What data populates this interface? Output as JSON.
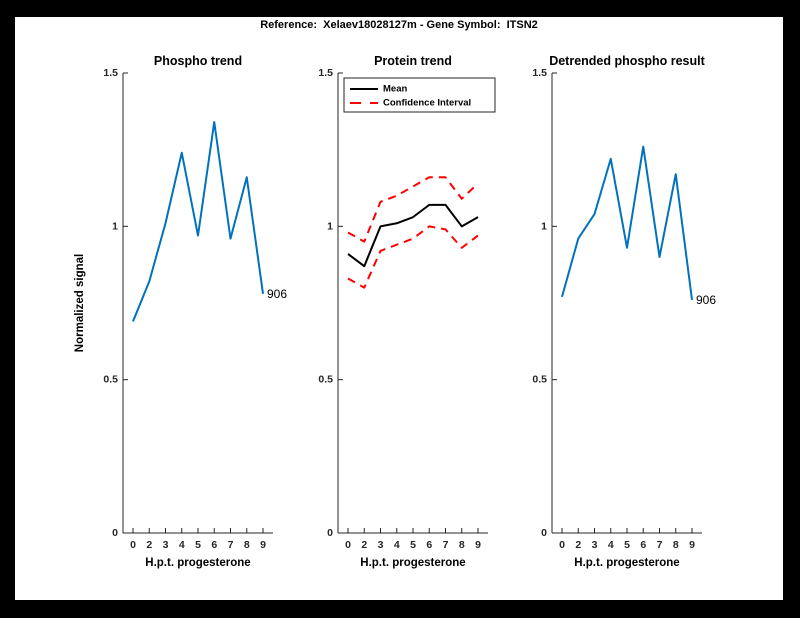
{
  "figure": {
    "title": "Reference:  Xelaev18028127m - Gene Symbol:  ITSN2"
  },
  "colors": {
    "line_blue": "#0072BD",
    "ci_red": "#FF0000",
    "mean_black": "#000000",
    "axis_gray": "#262626",
    "frame_black": "#000000",
    "canvas_white": "#FFFFFF"
  },
  "chart_data": [
    {
      "type": "line",
      "title": "Phospho trend",
      "xlabel": "H.p.t. progesterone",
      "ylabel": "Normalized signal",
      "x_tick_labels": [
        "0",
        "2",
        "3",
        "4",
        "5",
        "6",
        "7",
        "8",
        "9"
      ],
      "y_ticks": [
        {
          "value": 0,
          "label": "0"
        },
        {
          "value": 0.5,
          "label": "0.5"
        },
        {
          "value": 1,
          "label": "1"
        },
        {
          "value": 1.5,
          "label": "1.5"
        }
      ],
      "ylim": [
        0,
        1.5
      ],
      "grid": false,
      "legend": null,
      "series": [
        {
          "name": "phospho-trend",
          "color": "#0072BD",
          "dashed": false,
          "end_label": "906",
          "values": [
            0.69,
            0.82,
            1.01,
            1.24,
            0.97,
            1.34,
            0.96,
            1.16,
            0.78
          ]
        }
      ]
    },
    {
      "type": "line",
      "title": "Protein trend",
      "xlabel": "H.p.t. progesterone",
      "ylabel": null,
      "x_tick_labels": [
        "0",
        "2",
        "3",
        "4",
        "5",
        "6",
        "7",
        "8",
        "9"
      ],
      "y_ticks": [
        {
          "value": 0,
          "label": "0"
        },
        {
          "value": 0.5,
          "label": "0.5"
        },
        {
          "value": 1,
          "label": "1"
        },
        {
          "value": 1.5,
          "label": "1.5"
        }
      ],
      "ylim": [
        0,
        1.5
      ],
      "grid": false,
      "legend": {
        "position": "top-left",
        "entries": [
          {
            "label": "Mean",
            "color": "#000000",
            "dashed": false
          },
          {
            "label": "Confidence Interval",
            "color": "#FF0000",
            "dashed": true
          }
        ]
      },
      "series": [
        {
          "name": "mean",
          "color": "#000000",
          "dashed": false,
          "end_label": null,
          "values": [
            0.91,
            0.87,
            1.0,
            1.01,
            1.03,
            1.07,
            1.07,
            1.0,
            1.03
          ]
        },
        {
          "name": "ci-upper",
          "color": "#FF0000",
          "dashed": true,
          "end_label": null,
          "values": [
            0.98,
            0.95,
            1.08,
            1.1,
            1.13,
            1.16,
            1.16,
            1.09,
            1.14
          ]
        },
        {
          "name": "ci-lower",
          "color": "#FF0000",
          "dashed": true,
          "end_label": null,
          "values": [
            0.83,
            0.8,
            0.92,
            0.94,
            0.96,
            1.0,
            0.99,
            0.93,
            0.97
          ]
        }
      ]
    },
    {
      "type": "line",
      "title": "Detrended phospho result",
      "xlabel": "H.p.t. progesterone",
      "ylabel": null,
      "x_tick_labels": [
        "0",
        "2",
        "3",
        "4",
        "5",
        "6",
        "7",
        "8",
        "9"
      ],
      "y_ticks": [
        {
          "value": 0,
          "label": "0"
        },
        {
          "value": 0.5,
          "label": "0.5"
        },
        {
          "value": 1,
          "label": "1"
        },
        {
          "value": 1.5,
          "label": "1.5"
        }
      ],
      "ylim": [
        0,
        1.5
      ],
      "grid": false,
      "legend": null,
      "series": [
        {
          "name": "detrended-phospho",
          "color": "#0072BD",
          "dashed": false,
          "end_label": "906",
          "values": [
            0.77,
            0.96,
            1.04,
            1.22,
            0.93,
            1.26,
            0.9,
            1.17,
            0.76
          ]
        }
      ]
    }
  ]
}
